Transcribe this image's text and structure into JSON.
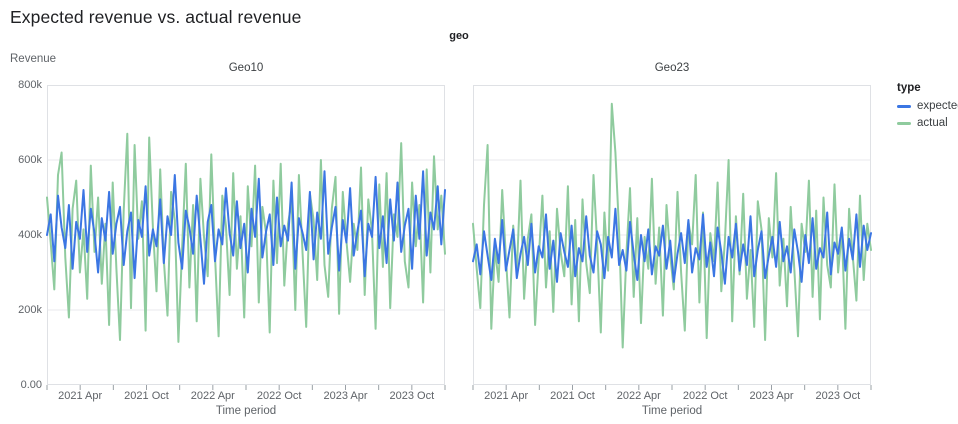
{
  "header": {
    "title": "Expected revenue vs. actual revenue"
  },
  "legend": {
    "title": "type",
    "items": [
      {
        "label": "expected",
        "color": "#3b76e3"
      },
      {
        "label": "actual",
        "color": "#8fcb9e"
      }
    ]
  },
  "chart_data": {
    "type": "line",
    "title": "Expected revenue vs. actual revenue",
    "facet_field_label": "geo",
    "x": {
      "label": "Time period",
      "months_span": 36,
      "tick_every_months": 3,
      "tick_labels": [
        {
          "month": 3,
          "label": "2021 Apr"
        },
        {
          "month": 9,
          "label": "2021 Oct"
        },
        {
          "month": 15,
          "label": "2022 Apr"
        },
        {
          "month": 21,
          "label": "2022 Oct"
        },
        {
          "month": 27,
          "label": "2023 Apr"
        },
        {
          "month": 33,
          "label": "2023 Oct"
        }
      ]
    },
    "y": {
      "label": "Revenue",
      "lim": [
        0,
        800000
      ],
      "ticks": [
        {
          "value": 800000,
          "label": "800k"
        },
        {
          "value": 600000,
          "label": "600k"
        },
        {
          "value": 400000,
          "label": "400k"
        },
        {
          "value": 200000,
          "label": "200k"
        },
        {
          "value": 0,
          "label": "0.00"
        }
      ]
    },
    "values_unit": "thousands",
    "grid": {
      "horizontal": true,
      "vertical": false,
      "color": "#e8eaed",
      "border_color": "#dfe1e5",
      "tick_color": "#9aa0a6"
    },
    "legend_position": "right",
    "series_colors": {
      "expected": "#3b76e3",
      "actual": "#8fcb9e"
    },
    "draw_order": [
      "actual",
      "expected"
    ],
    "facets": [
      {
        "name": "Geo10",
        "series": [
          {
            "name": "expected",
            "values": [
              400,
              455,
              330,
              505,
              420,
              365,
              480,
              310,
              435,
              390,
              520,
              355,
              470,
              405,
              300,
              445,
              385,
              515,
              350,
              430,
              475,
              320,
              410,
              460,
              285,
              440,
              395,
              530,
              345,
              415,
              370,
              495,
              325,
              450,
              400,
              560,
              380,
              310,
              465,
              420,
              350,
              505,
              390,
              270,
              435,
              480,
              330,
              415,
              375,
              525,
              405,
              345,
              490,
              365,
              430,
              300,
              470,
              395,
              550,
              340,
              410,
              455,
              320,
              500,
              370,
              425,
              385,
              540,
              310,
              445,
              405,
              360,
              515,
              335,
              460,
              390,
              570,
              350,
              420,
              475,
              305,
              440,
              380,
              525,
              345,
              410,
              465,
              290,
              430,
              395,
              555,
              365,
              450,
              325,
              495,
              385,
              540,
              355,
              425,
              470,
              310,
              505,
              390,
              570,
              345,
              460,
              415,
              530,
              375,
              520
            ]
          },
          {
            "name": "actual",
            "values": [
              500,
              380,
              255,
              560,
              620,
              340,
              180,
              470,
              545,
              300,
              415,
              230,
              585,
              355,
              500,
              270,
              430,
              160,
              540,
              310,
              120,
              465,
              670,
              205,
              640,
              390,
              490,
              145,
              660,
              420,
              250,
              575,
              335,
              185,
              515,
              440,
              115,
              365,
              590,
              260,
              480,
              170,
              550,
              395,
              290,
              615,
              345,
              130,
              505,
              425,
              240,
              565,
              310,
              450,
              180,
              530,
              370,
              585,
              220,
              475,
              405,
              140,
              545,
              325,
              590,
              265,
              430,
              490,
              200,
              560,
              350,
              155,
              510,
              440,
              280,
              600,
              320,
              235,
              470,
              555,
              190,
              515,
              385,
              275,
              430,
              360,
              580,
              240,
              495,
              410,
              150,
              535,
              315,
              565,
              205,
              455,
              395,
              645,
              330,
              260,
              540,
              370,
              480,
              220,
              575,
              300,
              610,
              415,
              505,
              350
            ]
          }
        ]
      },
      {
        "name": "Geo23",
        "series": [
          {
            "name": "expected",
            "values": [
              330,
              375,
              295,
              410,
              345,
              280,
              390,
              325,
              440,
              305,
              360,
              415,
              285,
              350,
              395,
              320,
              430,
              300,
              370,
              340,
              455,
              310,
              385,
              275,
              405,
              355,
              315,
              425,
              290,
              365,
              330,
              450,
              345,
              300,
              410,
              375,
              285,
              395,
              340,
              470,
              320,
              360,
              305,
              435,
              350,
              280,
              400,
              330,
              415,
              295,
              370,
              345,
              425,
              310,
              385,
              275,
              350,
              405,
              325,
              440,
              300,
              365,
              335,
              455,
              315,
              380,
              290,
              420,
              355,
              270,
              395,
              340,
              430,
              305,
              375,
              320,
              450,
              290,
              360,
              410,
              285,
              345,
              395,
              315,
              435,
              330,
              370,
              300,
              415,
              355,
              275,
              400,
              325,
              445,
              310,
              365,
              340,
              460,
              295,
              380,
              350,
              420,
              305,
              390,
              335,
              455,
              315,
              425,
              360,
              405
            ]
          },
          {
            "name": "actual",
            "values": [
              430,
              310,
              205,
              480,
              640,
              150,
              365,
              275,
              520,
              340,
              180,
              425,
              300,
              545,
              230,
              390,
              455,
              160,
              335,
              505,
              260,
              410,
              195,
              470,
              355,
              290,
              530,
              215,
              440,
              170,
              495,
              325,
              245,
              560,
              380,
              140,
              460,
              305,
              750,
              620,
              410,
              100,
              350,
              525,
              235,
              445,
              165,
              395,
              310,
              550,
              270,
              420,
              185,
              480,
              345,
              255,
              515,
              300,
              145,
              435,
              375,
              560,
              220,
              460,
              125,
              405,
              330,
              540,
              250,
              385,
              600,
              170,
              450,
              295,
              510,
              230,
              360,
              155,
              490,
              415,
              120,
              445,
              340,
              565,
              265,
              390,
              210,
              475,
              310,
              130,
              430,
              355,
              545,
              235,
              465,
              175,
              500,
              320,
              260,
              535,
              300,
              410,
              150,
              470,
              345,
              225,
              505,
              280,
              430,
              360
            ]
          }
        ]
      }
    ]
  }
}
